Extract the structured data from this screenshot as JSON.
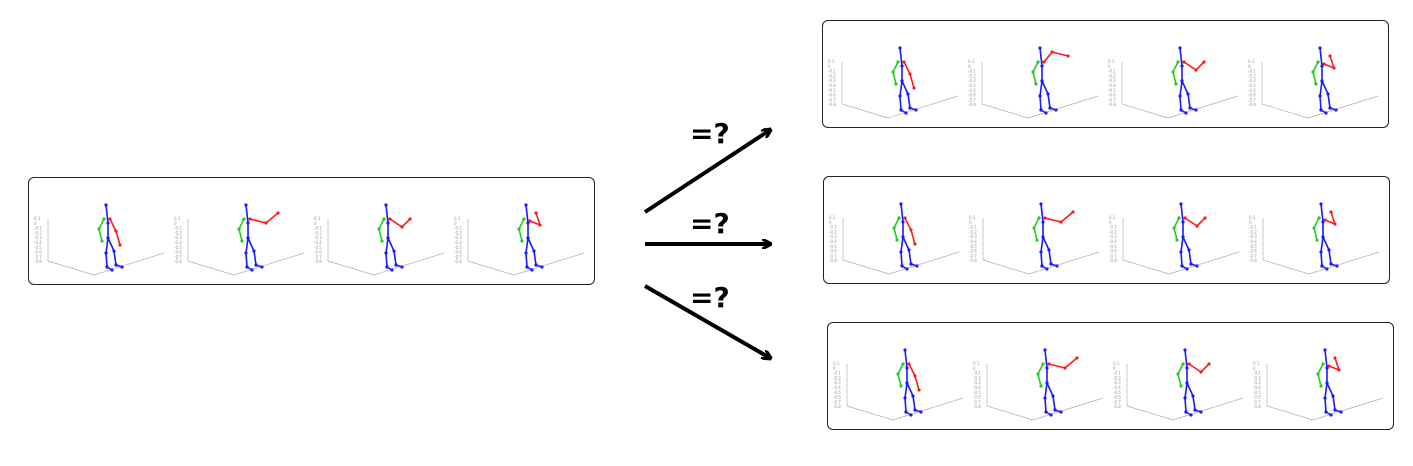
{
  "colors": {
    "torso": "#1a1aff",
    "left_arm": "#22cc22",
    "right_arm": "#ff1a1a",
    "axes": "#b0b0b0",
    "border": "#222222"
  },
  "query": {
    "name": "query-sequence",
    "frames": [
      {
        "arm": "down"
      },
      {
        "arm": "horizontal"
      },
      {
        "arm": "angled"
      },
      {
        "arm": "raised"
      }
    ]
  },
  "candidates": [
    {
      "name": "candidate-top",
      "frames": [
        {
          "arm": "down"
        },
        {
          "arm": "up-right"
        },
        {
          "arm": "angled"
        },
        {
          "arm": "raised"
        }
      ]
    },
    {
      "name": "candidate-middle",
      "frames": [
        {
          "arm": "down"
        },
        {
          "arm": "horizontal"
        },
        {
          "arm": "angled"
        },
        {
          "arm": "raised"
        }
      ]
    },
    {
      "name": "candidate-bottom",
      "frames": [
        {
          "arm": "down"
        },
        {
          "arm": "horizontal"
        },
        {
          "arm": "angled"
        },
        {
          "arm": "raised"
        }
      ]
    }
  ],
  "arrows": [
    {
      "label": "=?"
    },
    {
      "label": "=?"
    },
    {
      "label": "=?"
    }
  ],
  "axis_ticks": [
    "0.1",
    "0",
    "-0.1",
    "-0.2",
    "-0.3",
    "-0.4",
    "-0.5",
    "-0.6",
    "-0.7",
    "-0.8"
  ]
}
